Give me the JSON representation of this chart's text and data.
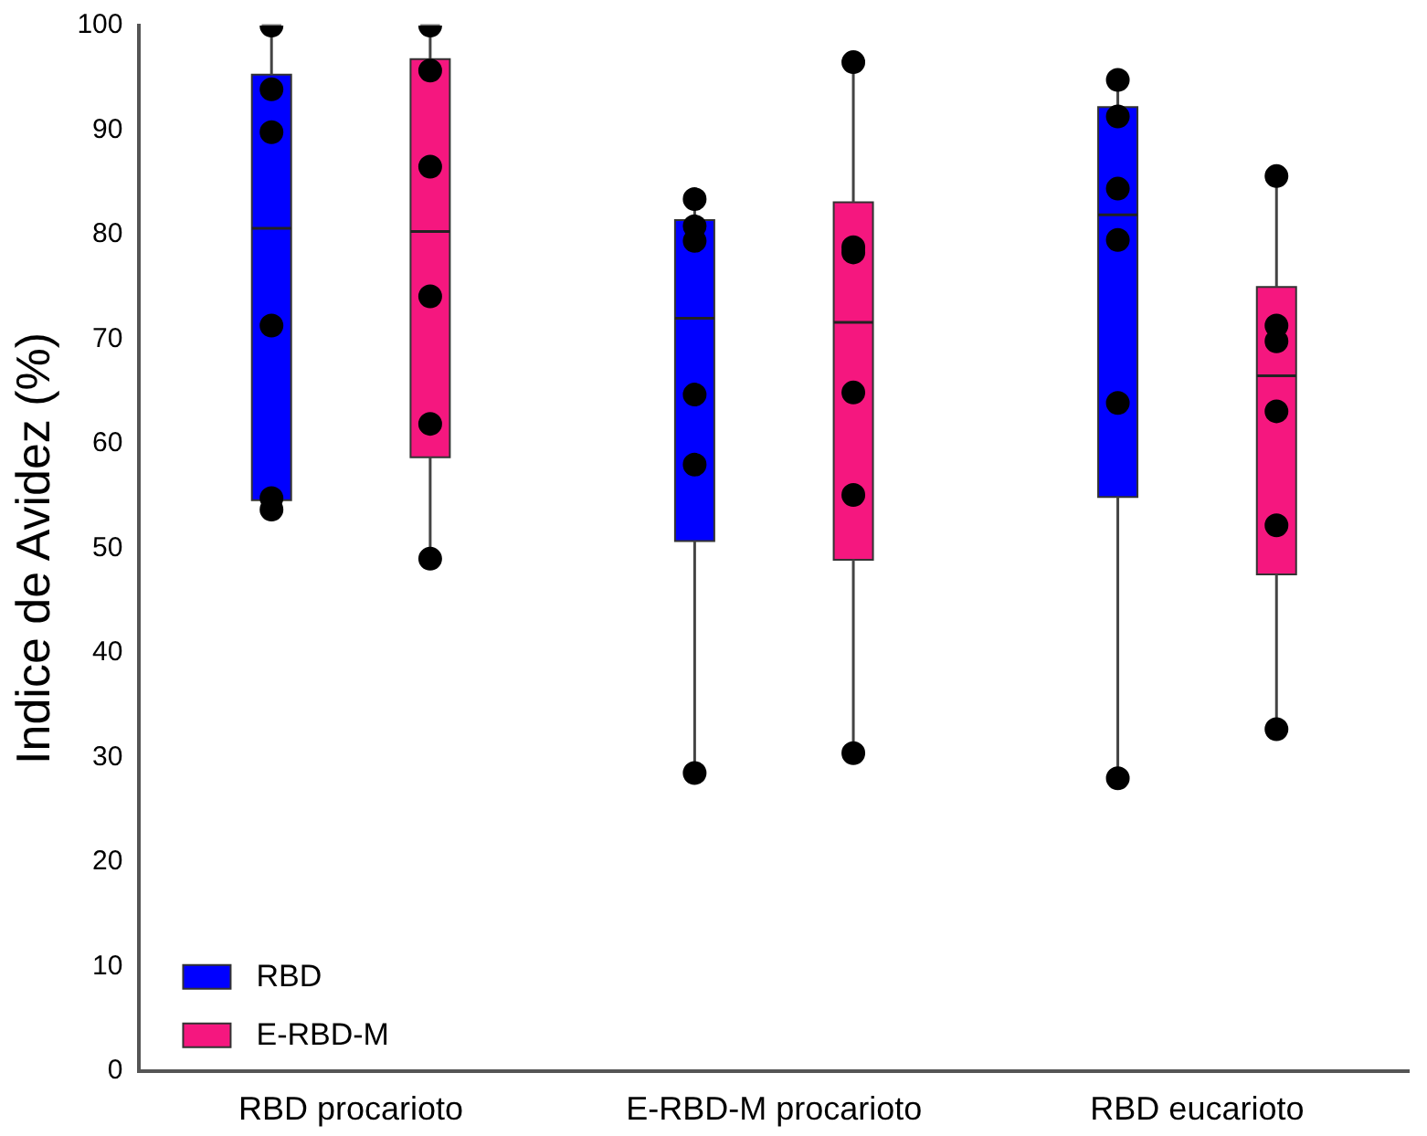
{
  "chart_data": {
    "type": "box",
    "ylabel": "Indice de Avidez (%)",
    "categories": [
      "RBD procarioto",
      "E-RBD-M procarioto",
      "RBD eucarioto"
    ],
    "ylim": [
      0,
      100
    ],
    "yticks": [
      0,
      10,
      20,
      30,
      40,
      50,
      60,
      70,
      80,
      90,
      100
    ],
    "grid": false,
    "legend": "bottom left",
    "marker": "circle",
    "series": [
      {
        "name": "RBD",
        "color": "#0000ff",
        "boxes": [
          {
            "low": 53.7,
            "q1": 54.6,
            "median": 80.6,
            "q3": 95.3,
            "high": 100
          },
          {
            "low": 28.5,
            "q1": 50.7,
            "median": 72.0,
            "q3": 81.4,
            "high": 83.4
          },
          {
            "low": 28.0,
            "q1": 54.9,
            "median": 81.9,
            "q3": 92.2,
            "high": 94.8
          }
        ]
      },
      {
        "name": "E-RBD-M",
        "color": "#f5177f",
        "boxes": [
          {
            "low": 49.0,
            "q1": 58.7,
            "median": 80.3,
            "q3": 96.8,
            "high": 100
          },
          {
            "low": 30.4,
            "q1": 48.9,
            "median": 71.6,
            "q3": 83.1,
            "high": 96.5
          },
          {
            "low": 32.7,
            "q1": 47.5,
            "median": 66.5,
            "q3": 75.0,
            "high": 85.6
          }
        ]
      },
      {
        "type": "scatter",
        "color": "#000000",
        "x": [
          "RBD procarioto",
          "RBD procarioto",
          "RBD procarioto",
          "RBD procarioto",
          "RBD procarioto",
          "RBD procarioto",
          "E-RBD-M procarioto",
          "E-RBD-M procarioto",
          "E-RBD-M procarioto",
          "E-RBD-M procarioto",
          "E-RBD-M procarioto",
          "E-RBD-M procarioto",
          "RBD eucarioto",
          "RBD eucarioto",
          "RBD eucarioto",
          "RBD eucarioto",
          "RBD eucarioto",
          "RBD eucarioto"
        ],
        "values": [
          100,
          93.9,
          89.8,
          71.3,
          54.8,
          53.7,
          83.4,
          80.8,
          79.4,
          64.7,
          58.0,
          28.5,
          94.8,
          91.3,
          84.4,
          79.5,
          63.9,
          28.0
        ]
      },
      {
        "type": "scatter",
        "color": "#000000",
        "x": [
          "RBD procarioto",
          "RBD procarioto",
          "RBD procarioto",
          "RBD procarioto",
          "RBD procarioto",
          "RBD procarioto",
          "E-RBD-M procarioto",
          "E-RBD-M procarioto",
          "E-RBD-M procarioto",
          "E-RBD-M procarioto",
          "E-RBD-M procarioto",
          "E-RBD-M procarioto",
          "RBD eucarioto",
          "RBD eucarioto",
          "RBD eucarioto",
          "RBD eucarioto",
          "RBD eucarioto",
          "RBD eucarioto"
        ],
        "values": [
          100,
          95.7,
          86.5,
          74.1,
          61.9,
          49.0,
          96.5,
          78.8,
          78.3,
          64.9,
          55.1,
          30.4,
          85.6,
          71.3,
          69.8,
          63.1,
          52.2,
          32.7
        ]
      }
    ]
  }
}
